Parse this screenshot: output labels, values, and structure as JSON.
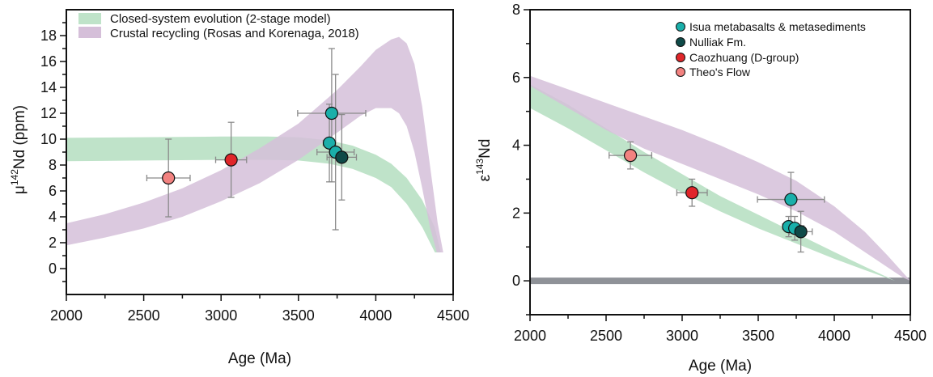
{
  "colors": {
    "closed_band": "#bfe3c9",
    "recycling_band": "#d5bfd9",
    "overlap_band": "#9eaaa5",
    "reference_line": "#8f9298",
    "error_bar": "#8a8a8a",
    "isua": "#1aafaa",
    "nulliak": "#0f4a48",
    "caozhuang": "#e0262a",
    "theos_flow": "#f28280",
    "axis": "#111111"
  },
  "chart_data": [
    {
      "type": "scatter",
      "panel": "left",
      "title": "",
      "xlabel": "Age (Ma)",
      "ylabel_prefix": "μ",
      "ylabel_sup": "142",
      "ylabel_suffix": "Nd (ppm)",
      "xlim": [
        2000,
        4500
      ],
      "ylim": [
        -2,
        20
      ],
      "xticks": [
        2000,
        2500,
        3000,
        3500,
        4000,
        4500
      ],
      "xtick_labels": [
        "2000",
        "2500",
        "3000",
        "3500",
        "4000",
        "4500"
      ],
      "xminor": [
        2250,
        2750,
        3250,
        3750,
        4250
      ],
      "yticks": [
        0,
        2,
        4,
        6,
        8,
        10,
        12,
        14,
        16,
        18
      ],
      "ytick_labels": [
        "0",
        "2",
        "4",
        "6",
        "8",
        "10",
        "12",
        "14",
        "16",
        "18"
      ],
      "yminor": [
        -1,
        1,
        3,
        5,
        7,
        9,
        11,
        13,
        15,
        17,
        19
      ],
      "grid": false,
      "legend": {
        "placement": "top-left",
        "entries": [
          {
            "label": "Closed-system evolution (2-stage model)",
            "kind": "closed_band"
          },
          {
            "label": "Crustal recycling (Rosas and Korenaga, 2018)",
            "kind": "recycling_band"
          }
        ]
      },
      "reference_line": {
        "y": 0
      },
      "bands": [
        {
          "name": "Closed-system evolution (2-stage model)",
          "kind": "closed_band",
          "x": [
            2000,
            2500,
            3000,
            3300,
            3500,
            3700,
            3850,
            4000,
            4100,
            4200,
            4300,
            4380,
            4440
          ],
          "upper": [
            10.1,
            10.15,
            10.2,
            10.2,
            10.15,
            9.9,
            9.5,
            8.8,
            8.1,
            7.0,
            5.3,
            3.2,
            0.3
          ],
          "lower": [
            8.3,
            8.35,
            8.4,
            8.4,
            8.35,
            8.1,
            7.7,
            7.0,
            6.3,
            5.0,
            3.2,
            1.3,
            0.0
          ]
        },
        {
          "name": "Crustal recycling (Rosas and Korenaga, 2018)",
          "kind": "recycling_band",
          "x": [
            2000,
            2250,
            2500,
            2750,
            3000,
            3250,
            3500,
            3750,
            3900,
            4000,
            4100,
            4150,
            4200,
            4250,
            4300,
            4350,
            4400,
            4440,
            4470
          ],
          "upper": [
            3.5,
            4.2,
            5.1,
            6.2,
            7.6,
            9.3,
            11.2,
            13.8,
            15.6,
            16.9,
            17.7,
            17.9,
            17.4,
            15.8,
            12.5,
            8.0,
            3.5,
            1.0,
            0.0
          ],
          "lower": [
            1.8,
            2.4,
            3.1,
            4.0,
            5.2,
            6.6,
            8.4,
            10.5,
            11.8,
            12.4,
            12.4,
            12.0,
            11.0,
            9.0,
            6.2,
            3.2,
            1.0,
            0.1,
            0.0
          ]
        }
      ],
      "series": [
        {
          "name": "Theo's Flow",
          "kind": "theos_flow",
          "points": [
            {
              "x": 2660,
              "y": 7.0,
              "xerr": 140,
              "yerr_low": 3.0,
              "yerr_high": 3.0
            }
          ]
        },
        {
          "name": "Caozhuang (D-group)",
          "kind": "caozhuang",
          "points": [
            {
              "x": 3065,
              "y": 8.4,
              "xerr": 100,
              "yerr_low": 2.9,
              "yerr_high": 2.9
            }
          ]
        },
        {
          "name": "Isua metabasalts & metasediments",
          "kind": "isua",
          "points": [
            {
              "x": 3715,
              "y": 12.0,
              "xerr": 220,
              "yerr_low": 5.3,
              "yerr_high": 5.0
            },
            {
              "x": 3700,
              "y": 9.7,
              "xerr": 40,
              "yerr_low": 3.0,
              "yerr_high": 3.0
            },
            {
              "x": 3740,
              "y": 9.0,
              "xerr": 120,
              "yerr_low": 6.0,
              "yerr_high": 6.0
            }
          ]
        },
        {
          "name": "Nulliak Fm.",
          "kind": "nulliak",
          "points": [
            {
              "x": 3780,
              "y": 8.6,
              "xerr": 95,
              "yerr_low": 3.3,
              "yerr_high": 3.3
            }
          ]
        }
      ]
    },
    {
      "type": "scatter",
      "panel": "right",
      "title": "",
      "xlabel": "Age (Ma)",
      "ylabel_prefix": "ε",
      "ylabel_sup": "143",
      "ylabel_suffix": "Nd",
      "xlim": [
        2000,
        4500
      ],
      "ylim": [
        -1,
        8
      ],
      "xticks": [
        2000,
        2500,
        3000,
        3500,
        4000,
        4500
      ],
      "xtick_labels": [
        "2000",
        "2500",
        "3000",
        "3500",
        "4000",
        "4500"
      ],
      "xminor": [
        2250,
        2750,
        3250,
        3750,
        4250
      ],
      "yticks": [
        0,
        2,
        4,
        6,
        8
      ],
      "ytick_labels": [
        "0",
        "2",
        "4",
        "6",
        "8"
      ],
      "yminor": [
        -1,
        1,
        3,
        5,
        7
      ],
      "grid": false,
      "legend": {
        "placement": "top-right",
        "entries": [
          {
            "label": "Isua metabasalts & metasediments",
            "kind": "isua"
          },
          {
            "label": "Nulliak Fm.",
            "kind": "nulliak"
          },
          {
            "label": "Caozhuang (D-group)",
            "kind": "caozhuang"
          },
          {
            "label": "Theo's Flow",
            "kind": "theos_flow"
          }
        ]
      },
      "reference_line": {
        "y": 0
      },
      "bands": [
        {
          "name": "Closed-system evolution (2-stage model)",
          "kind": "closed_band",
          "x": [
            2000,
            2250,
            2500,
            2750,
            3000,
            3250,
            3500,
            3750,
            4000,
            4200,
            4400
          ],
          "upper": [
            5.8,
            5.2,
            4.5,
            3.8,
            3.15,
            2.5,
            1.95,
            1.4,
            0.85,
            0.42,
            0.0
          ],
          "lower": [
            5.1,
            4.5,
            3.85,
            3.2,
            2.6,
            2.05,
            1.55,
            1.1,
            0.65,
            0.32,
            0.0
          ]
        },
        {
          "name": "Crustal recycling (Rosas and Korenaga, 2018)",
          "kind": "recycling_band",
          "x": [
            2000,
            2250,
            2500,
            2750,
            3000,
            3250,
            3500,
            3750,
            4000,
            4200,
            4350,
            4450,
            4500
          ],
          "upper": [
            6.05,
            5.65,
            5.25,
            4.85,
            4.45,
            4.0,
            3.5,
            2.95,
            2.2,
            1.45,
            0.75,
            0.25,
            0.0
          ],
          "lower": [
            5.75,
            5.1,
            4.45,
            3.9,
            3.45,
            3.0,
            2.55,
            2.05,
            1.45,
            0.85,
            0.4,
            0.1,
            0.0
          ]
        }
      ],
      "series": [
        {
          "name": "Theo's Flow",
          "kind": "theos_flow",
          "points": [
            {
              "x": 2660,
              "y": 3.7,
              "xerr": 140,
              "yerr_low": 0.4,
              "yerr_high": 0.4
            }
          ]
        },
        {
          "name": "Caozhuang (D-group)",
          "kind": "caozhuang",
          "points": [
            {
              "x": 3065,
              "y": 2.6,
              "xerr": 100,
              "yerr_low": 0.4,
              "yerr_high": 0.4
            }
          ]
        },
        {
          "name": "Isua metabasalts & metasediments",
          "kind": "isua",
          "points": [
            {
              "x": 3715,
              "y": 2.4,
              "xerr": 220,
              "yerr_low": 0.8,
              "yerr_high": 0.8
            },
            {
              "x": 3700,
              "y": 1.6,
              "xerr": 40,
              "yerr_low": 0.3,
              "yerr_high": 0.3
            },
            {
              "x": 3740,
              "y": 1.55,
              "xerr": 60,
              "yerr_low": 0.35,
              "yerr_high": 0.35
            }
          ]
        },
        {
          "name": "Nulliak Fm.",
          "kind": "nulliak",
          "points": [
            {
              "x": 3780,
              "y": 1.45,
              "xerr": 75,
              "yerr_low": 0.6,
              "yerr_high": 0.6
            }
          ]
        }
      ]
    }
  ]
}
